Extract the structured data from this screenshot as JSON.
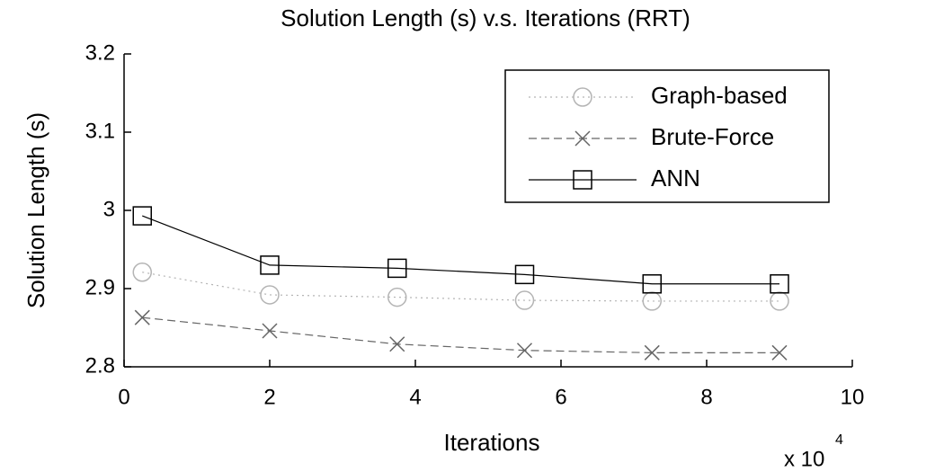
{
  "chart_data": {
    "type": "line",
    "title": "Solution Length (s) v.s. Iterations (RRT)",
    "x_label": "Iterations",
    "y_label": "Solution Length (s)",
    "x_offset_text": {
      "base": "x 10",
      "exponent": "4"
    },
    "x": [
      0.25,
      2,
      3.75,
      5.5,
      7.25,
      9
    ],
    "series": [
      {
        "name": "Graph-based",
        "color": "#b4b4b4",
        "line_style": "dotted",
        "marker": "circle",
        "values": [
          2.921,
          2.892,
          2.889,
          2.885,
          2.884,
          2.884
        ]
      },
      {
        "name": "Brute-Force",
        "color": "#666666",
        "line_style": "dashed",
        "marker": "x",
        "values": [
          2.863,
          2.846,
          2.829,
          2.821,
          2.818,
          2.818
        ]
      },
      {
        "name": "ANN",
        "color": "#000000",
        "line_style": "solid",
        "marker": "square",
        "values": [
          2.993,
          2.93,
          2.926,
          2.918,
          2.906,
          2.906
        ]
      }
    ],
    "xlim": [
      0,
      10
    ],
    "xticks": [
      0,
      2,
      4,
      6,
      8,
      10
    ],
    "ylim": [
      2.8,
      3.2
    ],
    "yticks": [
      2.8,
      2.9,
      3,
      3.1,
      3.2
    ],
    "grid": false,
    "legend": "upper right"
  }
}
